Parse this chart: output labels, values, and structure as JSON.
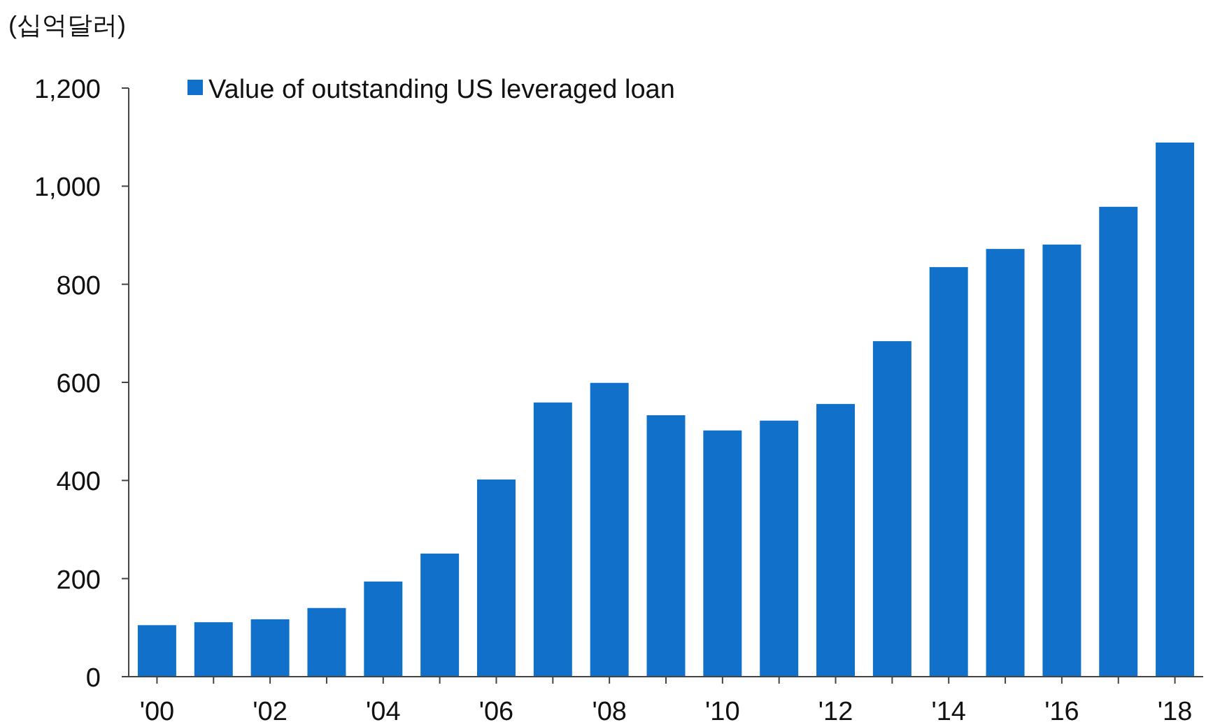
{
  "chart_data": {
    "type": "bar",
    "ylabel": "(십억달러)",
    "categories": [
      "'00",
      null,
      "'02",
      null,
      "'04",
      null,
      "'06",
      null,
      "'08",
      null,
      "'10",
      null,
      "'12",
      null,
      "'14",
      null,
      "'16",
      null,
      "'18"
    ],
    "series": [
      {
        "name": "Value of outstanding US leveraged loan",
        "color": "#1170c9",
        "values": [
          105,
          111,
          117,
          140,
          194,
          251,
          402,
          559,
          599,
          533,
          502,
          522,
          556,
          684,
          835,
          872,
          881,
          958,
          1089
        ]
      }
    ],
    "ylim": [
      0,
      1200
    ],
    "yticks": [
      0,
      200,
      400,
      600,
      800,
      {
        "value": 1000,
        "label": "1,000"
      },
      {
        "value": 1200,
        "label": "1,200"
      }
    ],
    "legend": "top left"
  }
}
